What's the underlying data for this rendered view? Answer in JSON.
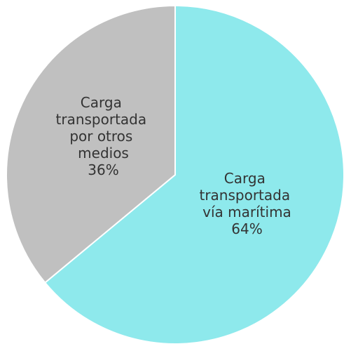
{
  "chart_data": {
    "type": "pie",
    "categories": [
      "Carga transportada vía marítima",
      "Carga transportada por otros medios"
    ],
    "values": [
      64,
      36
    ],
    "value_labels": [
      "64%",
      "36%"
    ],
    "colors": [
      "#8ee9ec",
      "#c0c0c0"
    ]
  }
}
